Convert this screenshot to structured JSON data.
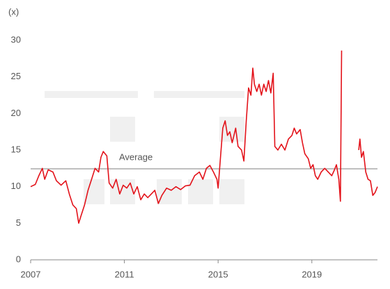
{
  "chart_data": {
    "type": "line",
    "y_axis_label": "(x)",
    "x": [
      2007.0,
      2007.2,
      2007.35,
      2007.5,
      2007.6,
      2007.75,
      2007.95,
      2008.1,
      2008.3,
      2008.5,
      2008.65,
      2008.8,
      2008.95,
      2009.05,
      2009.15,
      2009.3,
      2009.45,
      2009.6,
      2009.75,
      2009.9,
      2010.0,
      2010.1,
      2010.25,
      2010.35,
      2010.5,
      2010.65,
      2010.8,
      2010.95,
      2011.1,
      2011.25,
      2011.4,
      2011.55,
      2011.7,
      2011.85,
      2012.0,
      2012.15,
      2012.3,
      2012.45,
      2012.6,
      2012.8,
      2013.0,
      2013.2,
      2013.4,
      2013.6,
      2013.8,
      2014.0,
      2014.2,
      2014.35,
      2014.5,
      2014.65,
      2014.8,
      2014.95,
      2015.0,
      2015.1,
      2015.2,
      2015.3,
      2015.4,
      2015.5,
      2015.6,
      2015.75,
      2015.85,
      2016.0,
      2016.1,
      2016.2,
      2016.3,
      2016.4,
      2016.48,
      2016.55,
      2016.65,
      2016.75,
      2016.85,
      2016.95,
      2017.05,
      2017.15,
      2017.25,
      2017.35,
      2017.42,
      2017.55,
      2017.7,
      2017.85,
      2018.0,
      2018.15,
      2018.25,
      2018.35,
      2018.5,
      2018.6,
      2018.7,
      2018.85,
      2018.95,
      2019.05,
      2019.15,
      2019.25,
      2019.4,
      2019.55,
      2019.7,
      2019.85,
      2019.95,
      2020.05,
      2020.15,
      2020.22,
      2020.27,
      2020.6,
      2021.0,
      2021.05,
      2021.12,
      2021.2,
      2021.3,
      2021.4,
      2021.5,
      2021.6,
      2021.7,
      2021.8
    ],
    "series": [
      {
        "color": "#e3121a",
        "values": [
          10,
          10.3,
          11.5,
          12.5,
          11,
          12.3,
          12,
          10.8,
          10.2,
          10.8,
          9,
          7.5,
          7,
          5,
          6,
          7.5,
          9.5,
          11,
          12.5,
          12,
          14,
          14.8,
          14.2,
          10.5,
          9.8,
          11,
          9,
          10.2,
          9.8,
          10.5,
          9,
          10,
          8.2,
          9,
          8.5,
          9,
          9.5,
          7.7,
          8.8,
          9.8,
          9.5,
          10,
          9.6,
          10.1,
          10.2,
          11.5,
          12,
          11,
          12.5,
          12.9,
          12,
          11,
          9.8,
          14,
          18,
          19,
          17,
          17.5,
          16,
          18,
          15.5,
          15,
          13.5,
          19,
          23.5,
          22.5,
          26.2,
          24,
          23,
          24,
          22.5,
          24,
          23,
          24.5,
          22.8,
          25.5,
          15.5,
          15,
          15.8,
          15,
          16.5,
          17,
          18,
          17.2,
          17.8,
          16,
          14.5,
          13.8,
          12.5,
          13,
          11.5,
          11,
          12,
          12.5,
          12,
          11.5,
          12.2,
          13,
          11,
          8,
          28.6,
          null,
          15,
          16.5,
          14,
          14.8,
          12,
          11,
          10.8,
          8.8,
          9.2,
          10
        ]
      }
    ],
    "average": {
      "text": "Average",
      "value": 12.44,
      "color": "#999999"
    },
    "xlim": [
      2007,
      2021.8
    ],
    "xticks": [
      2007,
      2011,
      2015,
      2019
    ],
    "ylim": [
      0,
      30
    ],
    "yticks": [
      0,
      5,
      10,
      15,
      20,
      25,
      30
    ]
  }
}
